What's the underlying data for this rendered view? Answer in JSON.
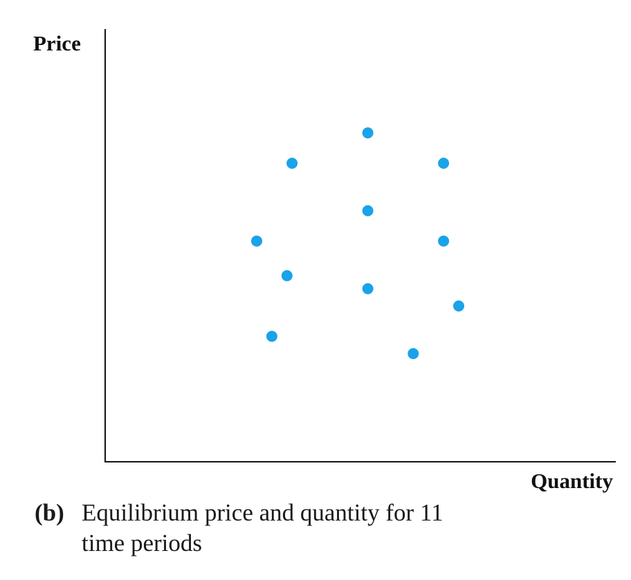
{
  "chart_data": {
    "type": "scatter",
    "xlabel": "Quantity",
    "ylabel": "Price",
    "xlim": [
      0,
      100
    ],
    "ylim": [
      0,
      100
    ],
    "grid": false,
    "ticks": false,
    "point_color": "#1aa3e8",
    "points": [
      {
        "x": 52,
        "y": 76
      },
      {
        "x": 37,
        "y": 69
      },
      {
        "x": 67,
        "y": 69
      },
      {
        "x": 52,
        "y": 58
      },
      {
        "x": 30,
        "y": 51
      },
      {
        "x": 67,
        "y": 51
      },
      {
        "x": 36,
        "y": 43
      },
      {
        "x": 52,
        "y": 40
      },
      {
        "x": 70,
        "y": 36
      },
      {
        "x": 33,
        "y": 29
      },
      {
        "x": 61,
        "y": 25
      }
    ]
  },
  "caption": {
    "letter": "(b)",
    "line1": "Equilibrium price and quantity for 11",
    "line2": "time periods"
  }
}
